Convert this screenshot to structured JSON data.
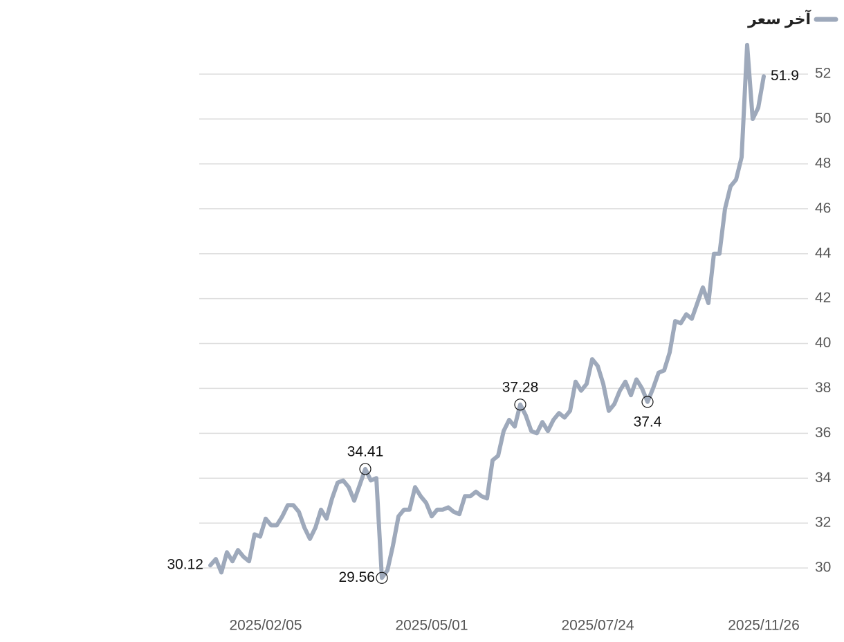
{
  "chart_data": {
    "type": "line",
    "categories": [
      null,
      null,
      null,
      null,
      null,
      null,
      null,
      null,
      null,
      null,
      "2025/02/05",
      null,
      null,
      null,
      null,
      null,
      null,
      null,
      null,
      null,
      null,
      null,
      null,
      null,
      null,
      null,
      null,
      null,
      null,
      null,
      null,
      null,
      null,
      null,
      null,
      null,
      null,
      null,
      null,
      null,
      "2025/05/01",
      null,
      null,
      null,
      null,
      null,
      null,
      null,
      null,
      null,
      null,
      null,
      null,
      null,
      null,
      null,
      null,
      null,
      null,
      null,
      null,
      null,
      null,
      null,
      null,
      null,
      null,
      null,
      null,
      null,
      "2025/07/24",
      null,
      null,
      null,
      null,
      null,
      null,
      null,
      null,
      null,
      null,
      null,
      null,
      null,
      null,
      null,
      null,
      null,
      null,
      null,
      null,
      null,
      null,
      null,
      null,
      null,
      null,
      null,
      null,
      null,
      "2025/11/26"
    ],
    "series": [
      {
        "name": "آخر سعر",
        "color": "#9ea9bb",
        "values": [
          30.12,
          30.4,
          29.8,
          30.7,
          30.3,
          30.8,
          30.5,
          30.3,
          31.5,
          31.4,
          32.2,
          31.9,
          31.9,
          32.3,
          32.8,
          32.8,
          32.5,
          31.8,
          31.3,
          31.8,
          32.6,
          32.2,
          33.1,
          33.8,
          33.9,
          33.6,
          33.0,
          33.7,
          34.41,
          33.9,
          34.0,
          29.56,
          29.9,
          31.0,
          32.3,
          32.6,
          32.6,
          33.6,
          33.2,
          32.9,
          32.3,
          32.6,
          32.6,
          32.7,
          32.5,
          32.4,
          33.2,
          33.2,
          33.4,
          33.2,
          33.1,
          34.8,
          35.0,
          36.1,
          36.6,
          36.3,
          37.28,
          36.8,
          36.1,
          36.0,
          36.5,
          36.1,
          36.6,
          36.9,
          36.7,
          37.0,
          38.3,
          37.9,
          38.2,
          39.3,
          39.0,
          38.2,
          37.0,
          37.3,
          37.9,
          38.3,
          37.7,
          38.4,
          38.0,
          37.4,
          38.0,
          38.7,
          38.8,
          39.6,
          41.0,
          40.9,
          41.3,
          41.1,
          41.8,
          42.5,
          41.8,
          44.0,
          44.0,
          46.0,
          47.0,
          47.3,
          48.3,
          53.3,
          50.0,
          50.5,
          51.9
        ]
      }
    ],
    "ylim": [
      28.8,
      53.5
    ],
    "yticks": [
      30,
      32,
      34,
      36,
      38,
      40,
      42,
      44,
      46,
      48,
      50,
      52
    ],
    "grid": true,
    "legend": "top-right"
  }
}
